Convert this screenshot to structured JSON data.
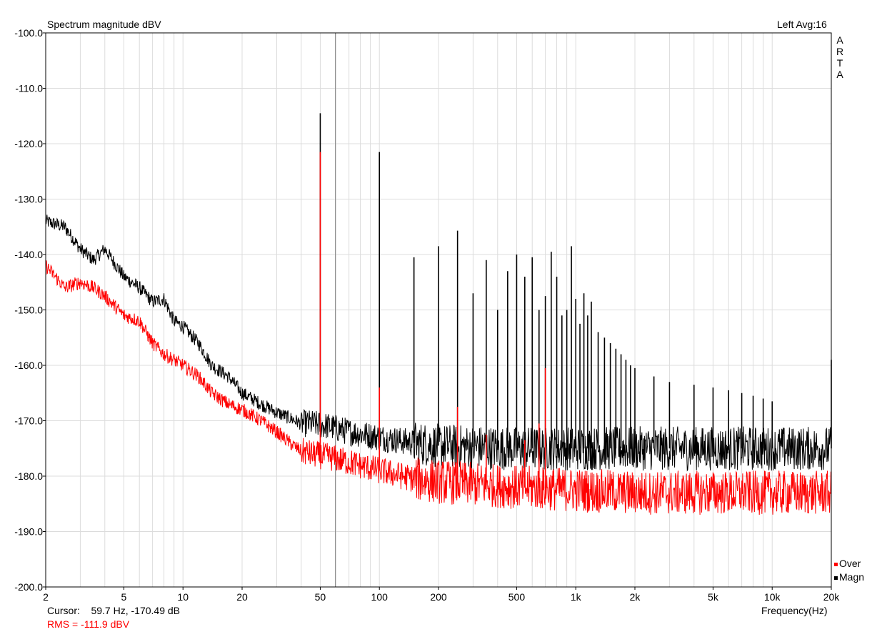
{
  "header": {
    "title": "Spectrum magnitude dBV",
    "channel_info": "Left  Avg:16",
    "brand_letters": [
      "A",
      "R",
      "T",
      "A"
    ]
  },
  "legend": {
    "items": [
      {
        "label": "Over",
        "color": "#ff0000"
      },
      {
        "label": "Magn",
        "color": "#000000"
      }
    ]
  },
  "footer": {
    "cursor_label": "Cursor:",
    "cursor_value": "59.7 Hz, -170.49 dB",
    "rms": "RMS = -111.9 dBV"
  },
  "colors": {
    "grid": "#dcdcdc",
    "axis": "#000000",
    "magn": "#000000",
    "over": "#ff0000",
    "cursor": "#808080"
  },
  "chart_data": {
    "type": "line",
    "title": "Spectrum magnitude dBV",
    "xlabel": "Frequency(Hz)",
    "ylabel": "",
    "x_scale": "log",
    "xlim": [
      2,
      20000
    ],
    "ylim": [
      -200,
      -100
    ],
    "x_ticks": [
      2,
      5,
      10,
      20,
      50,
      100,
      200,
      500,
      1000,
      2000,
      5000,
      10000,
      20000
    ],
    "x_tick_labels": [
      "2",
      "5",
      "10",
      "20",
      "50",
      "100",
      "200",
      "500",
      "1k",
      "2k",
      "5k",
      "10k",
      "20k"
    ],
    "y_ticks": [
      -100,
      -110,
      -120,
      -130,
      -140,
      -150,
      -160,
      -170,
      -180,
      -190,
      -200
    ],
    "y_tick_labels": [
      "-100.0",
      "-110.0",
      "-120.0",
      "-130.0",
      "-140.0",
      "-150.0",
      "-160.0",
      "-170.0",
      "-180.0",
      "-190.0",
      "-200.0"
    ],
    "grid": true,
    "legend_position": "bottom-right",
    "cursor": {
      "x": 59.7,
      "y": -170.49
    },
    "series": [
      {
        "name": "Magn",
        "color": "#000000",
        "noise_floor": {
          "x": [
            2,
            2.5,
            3,
            3.5,
            4,
            5,
            6,
            7,
            8,
            9,
            10,
            12,
            14,
            17,
            20,
            25,
            30,
            35,
            40,
            45,
            55,
            70,
            100,
            150,
            200,
            500,
            1000,
            2000,
            5000,
            10000,
            20000
          ],
          "y": [
            -134,
            -135,
            -139,
            -141,
            -139,
            -144,
            -146,
            -148.5,
            -148,
            -152,
            -153,
            -156,
            -160,
            -162,
            -165,
            -167,
            -168.5,
            -169.5,
            -170.5,
            -170.5,
            -171,
            -172,
            -173,
            -174,
            -174.5,
            -175,
            -175,
            -175,
            -175,
            -175,
            -175
          ]
        },
        "peaks": {
          "x": [
            50,
            100,
            150,
            200,
            250,
            300,
            350,
            400,
            450,
            500,
            550,
            600,
            650,
            700,
            750,
            800,
            850,
            900,
            950,
            1000,
            1050,
            1100,
            1150,
            1200,
            1300,
            1400,
            1500,
            1600,
            1700,
            1800,
            1900,
            2000,
            2500,
            3000,
            4000,
            5000,
            6000,
            7000,
            8000,
            9000,
            10000,
            20000
          ],
          "y": [
            -114.5,
            -121.5,
            -140.5,
            -138.5,
            -135.7,
            -147,
            -141,
            -150,
            -143,
            -140,
            -144,
            -140.5,
            -150,
            -147.5,
            -139.5,
            -144,
            -151,
            -150,
            -138.5,
            -148,
            -152.5,
            -147,
            -151,
            -148.5,
            -154,
            -155,
            -156,
            -157,
            -158,
            -159,
            -160,
            -160.5,
            -162,
            -163,
            -163.5,
            -164,
            -164.5,
            -165,
            -165.5,
            -166,
            -166.5,
            -159
          ]
        }
      },
      {
        "name": "Over",
        "color": "#ff0000",
        "noise_floor": {
          "x": [
            2,
            2.5,
            3,
            3.5,
            4,
            5,
            6,
            7,
            8,
            9,
            10,
            12,
            14,
            17,
            20,
            25,
            30,
            35,
            40,
            45,
            55,
            70,
            100,
            150,
            200,
            500,
            1000,
            2000,
            5000,
            10000,
            20000
          ],
          "y": [
            -142,
            -146,
            -145,
            -146,
            -147.5,
            -151,
            -152,
            -156,
            -158,
            -159,
            -160,
            -162,
            -165,
            -167,
            -168,
            -170,
            -172,
            -174,
            -175.5,
            -176,
            -176.5,
            -177.5,
            -179,
            -180.5,
            -181,
            -182,
            -182.5,
            -183,
            -183,
            -183,
            -183
          ]
        },
        "peaks": {
          "x": [
            50,
            100,
            250,
            350,
            550,
            650,
            700
          ],
          "y": [
            -121.5,
            -164,
            -167.5,
            -172.5,
            -173.5,
            -170.5,
            -160.5
          ]
        }
      }
    ]
  }
}
